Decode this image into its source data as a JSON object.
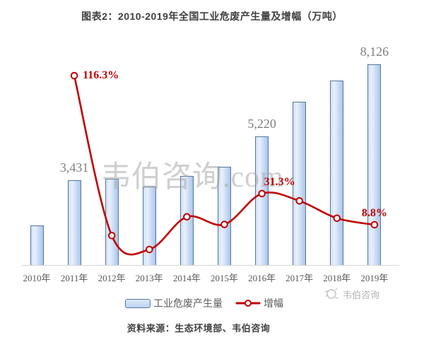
{
  "watermarks": {
    "center": "韦伯咨询.com",
    "corner": "韦伯咨询"
  },
  "colors": {
    "bar_fill": "#cfdff5",
    "bar_border": "#54779f",
    "line": "#c00000",
    "value_label": "#7f7f7f",
    "axis_label": "#595959",
    "title_text": "#3f3f3f",
    "axis_line": "#d6d6d6",
    "watermark": "#a8a8a8"
  },
  "chart_data": {
    "type": "bar+line",
    "title": "图表2：2010-2019年全国工业危废产生量及增幅（万吨）",
    "unit": "万吨",
    "categories": [
      "2010年",
      "2011年",
      "2012年",
      "2013年",
      "2014年",
      "2015年",
      "2016年",
      "2017年",
      "2018年",
      "2019年"
    ],
    "series": [
      {
        "name": "工业危废产生量",
        "type": "bar",
        "axis": "left",
        "values": [
          1600,
          3431,
          3480,
          3170,
          3620,
          3990,
          5220,
          6600,
          7480,
          8126
        ],
        "value_labels": [
          "",
          "3,431",
          "",
          "",
          "",
          "",
          "5,220",
          "",
          "",
          "8,126"
        ]
      },
      {
        "name": "增幅",
        "type": "line",
        "axis": "right",
        "unit": "%",
        "values": [
          null,
          116.3,
          1.0,
          -9.0,
          14.5,
          9.0,
          31.3,
          26.0,
          13.5,
          8.8
        ],
        "value_labels": [
          "",
          "116.3%",
          "",
          "",
          "",
          "",
          "31.3%",
          "",
          "",
          "8.8%"
        ]
      }
    ],
    "legend_position": "bottom",
    "grid": false,
    "axes_visible": false,
    "ylim_left": [
      0,
      9000
    ],
    "ylim_right_pct": [
      -20,
      130
    ],
    "source": "资料来源：生态环境部、韦伯咨询"
  }
}
